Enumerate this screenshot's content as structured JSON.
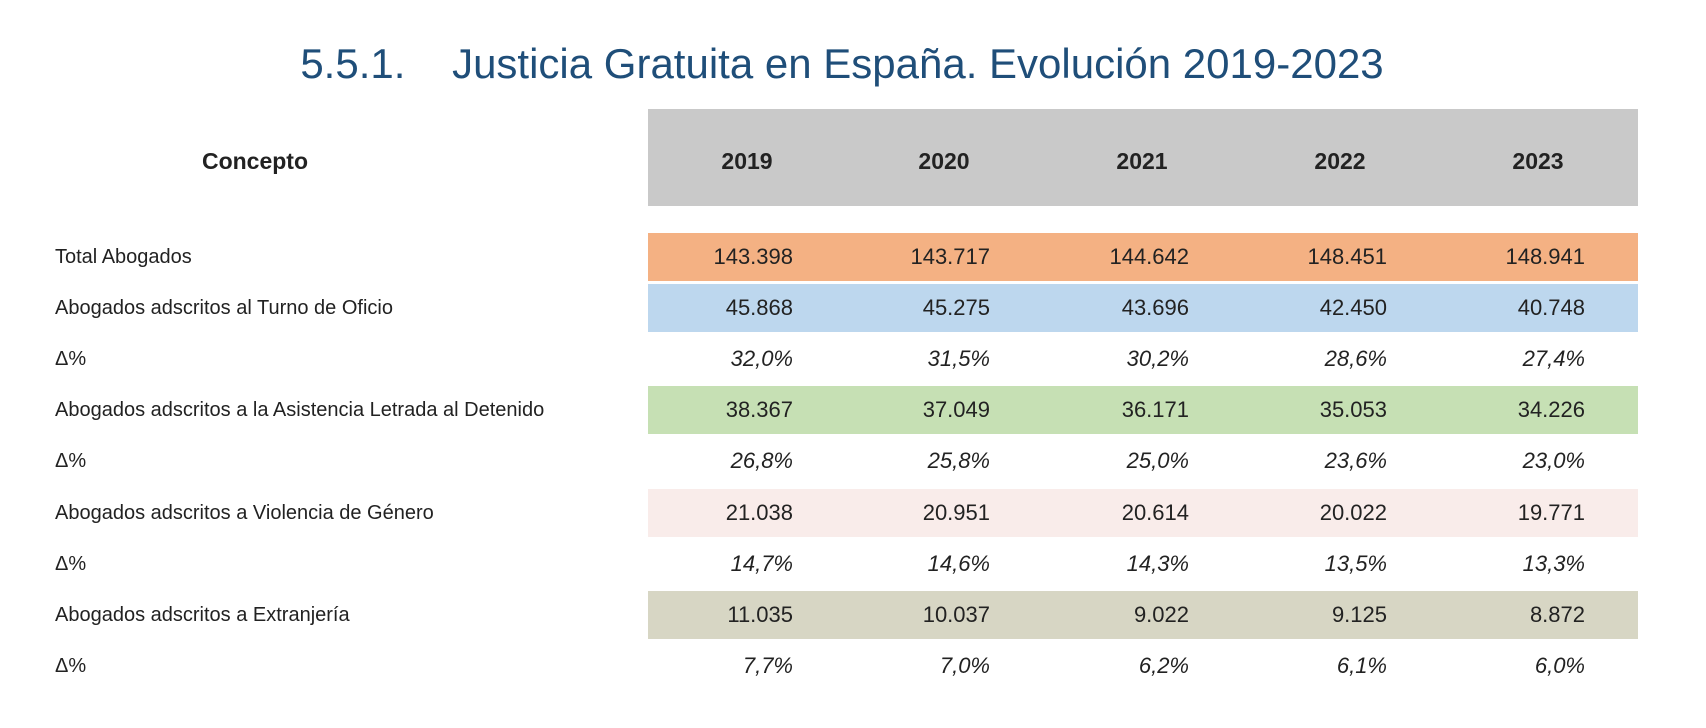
{
  "header": {
    "title": "5.5.1.    Justicia Gratuita en España. Evolución 2019-2023"
  },
  "table": {
    "columns": [
      "Concepto",
      "2019",
      "2020",
      "2021",
      "2022",
      "2023"
    ],
    "rows": [
      [
        "Total Abogados",
        "143.398",
        "143.717",
        "144.642",
        "148.451",
        "148.941"
      ],
      [
        "Abogados adscritos al Turno de Oficio",
        "45.868",
        "45.275",
        "43.696",
        "42.450",
        "40.748"
      ],
      [
        "Δ%",
        "32,0%",
        "31,5%",
        "30,2%",
        "28,6%",
        "27,4%"
      ],
      [
        "Abogados adscritos a la Asistencia Letrada al Detenido",
        "38.367",
        "37.049",
        "36.171",
        "35.053",
        "34.226"
      ],
      [
        "Δ%",
        "26,8%",
        "25,8%",
        "25,0%",
        "23,6%",
        "23,0%"
      ],
      [
        "Abogados adscritos a Violencia de Género",
        "21.038",
        "20.951",
        "20.614",
        "20.022",
        "19.771"
      ],
      [
        "Δ%",
        "14,7%",
        "14,6%",
        "14,3%",
        "13,5%",
        "13,3%"
      ],
      [
        "Abogados adscritos a Extranjería",
        "11.035",
        "10.037",
        "9.022",
        "9.125",
        "8.872"
      ],
      [
        "Δ%",
        "7,7%",
        "7,0%",
        "6,2%",
        "6,1%",
        "6,0%"
      ]
    ]
  }
}
